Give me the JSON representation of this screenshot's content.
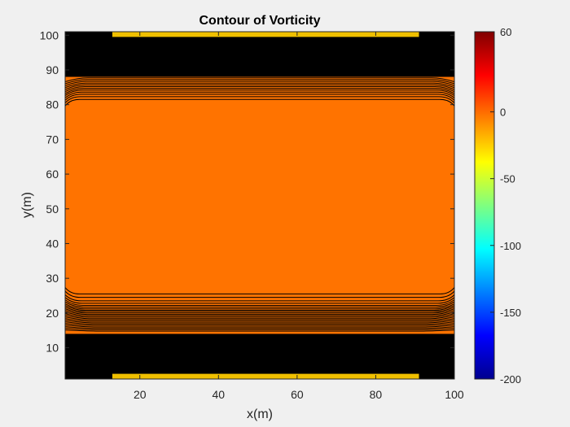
{
  "chart_data": {
    "type": "contour",
    "title": "Contour of Vorticity",
    "xlabel": "x(m)",
    "ylabel": "y(m)",
    "xlim": [
      1,
      100
    ],
    "ylim": [
      1,
      101
    ],
    "xticks": [
      20,
      40,
      60,
      80,
      100
    ],
    "yticks": [
      10,
      20,
      30,
      40,
      50,
      60,
      70,
      80,
      90,
      100
    ],
    "colorbar": {
      "colormap": "jet",
      "clim": [
        -200,
        60
      ],
      "ticks": [
        60,
        0,
        -50,
        -100,
        -150,
        -200
      ]
    },
    "regions": [
      {
        "name": "interior",
        "y_range": [
          25,
          81
        ],
        "value": 0,
        "color": "#ff7300"
      },
      {
        "name": "bottom-boundary-layer",
        "y_range": [
          1,
          14
        ],
        "value_range": [
          -200,
          60
        ],
        "color": "#000000"
      },
      {
        "name": "top-boundary-layer",
        "y_range": [
          88,
          101
        ],
        "value_range": [
          -200,
          60
        ],
        "color": "#000000"
      },
      {
        "name": "bottom-wall-strip",
        "x_range": [
          13,
          91
        ],
        "y_range": [
          1,
          2.5
        ],
        "value": -25,
        "color": "#f0c000"
      },
      {
        "name": "top-wall-strip",
        "x_range": [
          13,
          91
        ],
        "y_range": [
          99.5,
          101
        ],
        "value": -25,
        "color": "#f0c000"
      }
    ],
    "grid": false
  }
}
